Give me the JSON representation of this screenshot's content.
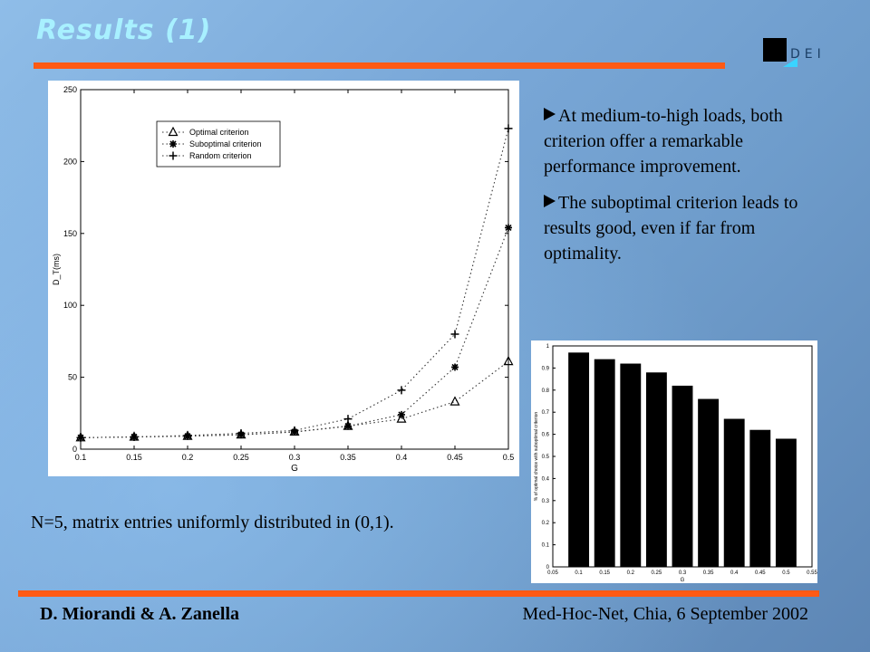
{
  "slide": {
    "title": "Results (1)",
    "logo_text": "DEI",
    "bullets": [
      "At medium-to-high loads, both criterion offer a remarkable performance improvement.",
      "The suboptimal criterion leads to results good, even if far from optimality."
    ],
    "caption": "N=5, matrix entries uniformly distributed in (0,1).",
    "footer_left": "D. Miorandi & A. Zanella",
    "footer_right": "Med-Hoc-Net, Chia, 6 September 2002",
    "accent_color": "#ff5a14",
    "title_color": "#a8f0ff"
  },
  "chart_data": [
    {
      "type": "line",
      "xlabel": "G",
      "ylabel": "D_T(ms)",
      "x": [
        0.1,
        0.15,
        0.2,
        0.25,
        0.3,
        0.35,
        0.4,
        0.45,
        0.5
      ],
      "x_ticks": [
        "0.1",
        "0.15",
        "0.2",
        "0.25",
        "0.3",
        "0.35",
        "0.4",
        "0.45",
        "0.5"
      ],
      "y_ticks": [
        "0",
        "50",
        "100",
        "150",
        "200",
        "250"
      ],
      "xlim": [
        0.1,
        0.5
      ],
      "ylim": [
        0,
        250
      ],
      "legend_position": "top-left",
      "series": [
        {
          "name": "Optimal criterion",
          "marker": "triangle",
          "values": [
            8,
            8.5,
            9,
            10,
            12,
            16,
            21,
            33,
            61
          ]
        },
        {
          "name": "Suboptimal criterion",
          "marker": "star",
          "values": [
            8,
            8.5,
            9,
            10,
            12,
            16,
            24,
            57,
            154
          ]
        },
        {
          "name": "Random criterion",
          "marker": "plus",
          "values": [
            8,
            8.5,
            9.5,
            11,
            13,
            21,
            41,
            80,
            223
          ]
        }
      ]
    },
    {
      "type": "bar",
      "xlabel": "G",
      "ylabel": "% of optimal choice with suboptimal criterion",
      "categories": [
        "0.1",
        "0.15",
        "0.2",
        "0.25",
        "0.3",
        "0.35",
        "0.4",
        "0.45",
        "0.5"
      ],
      "values": [
        0.97,
        0.94,
        0.92,
        0.88,
        0.82,
        0.76,
        0.67,
        0.62,
        0.58
      ],
      "x_ticks": [
        "0.05",
        "0.1",
        "0.15",
        "0.2",
        "0.25",
        "0.3",
        "0.35",
        "0.4",
        "0.45",
        "0.5",
        "0.55"
      ],
      "y_ticks": [
        "0",
        "0.1",
        "0.2",
        "0.3",
        "0.4",
        "0.5",
        "0.6",
        "0.7",
        "0.8",
        "0.9",
        "1"
      ],
      "xlim": [
        0.05,
        0.55
      ],
      "ylim": [
        0,
        1
      ]
    }
  ]
}
